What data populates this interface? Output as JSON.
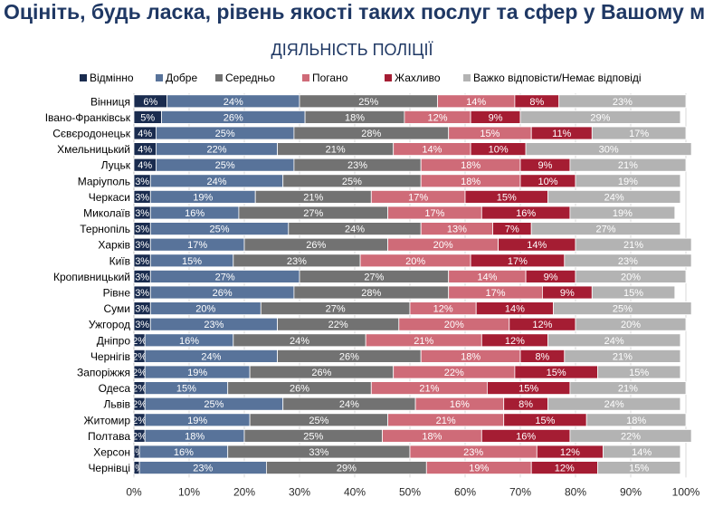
{
  "header": {
    "title": "Оцініть, будь ласка, рівень якості таких послуг та сфер у Вашому місті"
  },
  "chart_data": {
    "type": "bar",
    "orientation": "horizontal",
    "stacked": true,
    "title": "ДІЯЛЬНІСТЬ ПОЛІЦІЇ",
    "xlim": [
      0,
      100
    ],
    "x_ticks": [
      "0%",
      "10%",
      "20%",
      "30%",
      "40%",
      "50%",
      "60%",
      "70%",
      "80%",
      "90%",
      "100%"
    ],
    "legend_position": "top",
    "categories": [
      "Вінниця",
      "Івано-Франківськ",
      "Сєвєродонецьк",
      "Хмельницький",
      "Луцьк",
      "Маріуполь",
      "Черкаси",
      "Миколаїв",
      "Тернопіль",
      "Харків",
      "Київ",
      "Кропивницький",
      "Рівне",
      "Суми",
      "Ужгород",
      "Дніпро",
      "Чернігів",
      "Запоріжжя",
      "Одеса",
      "Львів",
      "Житомир",
      "Полтава",
      "Херсон",
      "Чернівці"
    ],
    "series": [
      {
        "name": "Відмінно",
        "color": "#1a2c4f",
        "values": [
          6,
          5,
          4,
          4,
          4,
          3,
          3,
          3,
          3,
          3,
          3,
          3,
          3,
          3,
          3,
          2,
          2,
          2,
          2,
          2,
          2,
          2,
          1,
          1
        ]
      },
      {
        "name": "Добре",
        "color": "#58739a",
        "values": [
          24,
          26,
          25,
          22,
          25,
          24,
          19,
          16,
          25,
          17,
          15,
          27,
          26,
          20,
          23,
          16,
          24,
          19,
          15,
          25,
          19,
          18,
          16,
          23
        ]
      },
      {
        "name": "Середньо",
        "color": "#727272",
        "values": [
          25,
          18,
          28,
          21,
          23,
          25,
          21,
          27,
          24,
          26,
          23,
          27,
          28,
          27,
          22,
          24,
          26,
          26,
          26,
          24,
          25,
          25,
          33,
          29
        ]
      },
      {
        "name": "Погано",
        "color": "#cf6b78",
        "values": [
          14,
          12,
          15,
          14,
          18,
          18,
          17,
          17,
          13,
          20,
          20,
          14,
          17,
          12,
          20,
          21,
          18,
          22,
          21,
          16,
          21,
          18,
          23,
          19
        ]
      },
      {
        "name": "Жахливо",
        "color": "#a51d33",
        "values": [
          8,
          9,
          11,
          10,
          9,
          10,
          15,
          16,
          7,
          14,
          17,
          9,
          9,
          14,
          12,
          12,
          8,
          15,
          15,
          8,
          15,
          16,
          12,
          12
        ]
      },
      {
        "name": "Важко відповісти/Немає відповіді",
        "color": "#b3b3b3",
        "values": [
          23,
          29,
          17,
          30,
          21,
          19,
          24,
          19,
          27,
          21,
          23,
          20,
          15,
          25,
          20,
          24,
          21,
          15,
          21,
          24,
          18,
          22,
          14,
          15
        ]
      }
    ]
  }
}
